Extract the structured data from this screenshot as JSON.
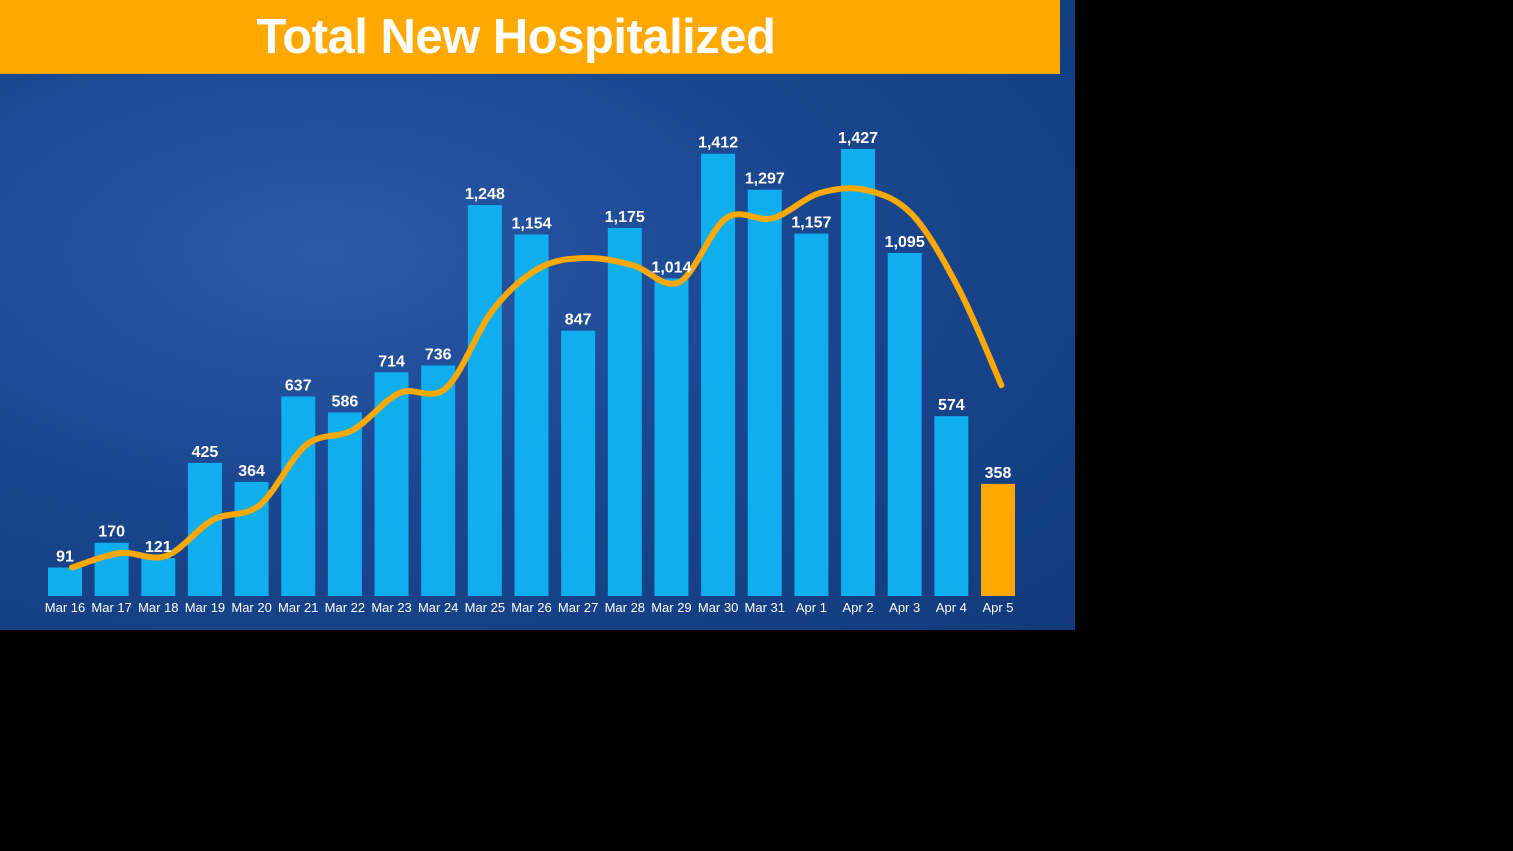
{
  "chart_data": {
    "type": "bar",
    "title": "Total New Hospitalized",
    "categories": [
      "Mar 16",
      "Mar 17",
      "Mar 18",
      "Mar 19",
      "Mar 20",
      "Mar 21",
      "Mar 22",
      "Mar 23",
      "Mar 24",
      "Mar 25",
      "Mar 26",
      "Mar 27",
      "Mar 28",
      "Mar 29",
      "Mar 30",
      "Mar 31",
      "Apr 1",
      "Apr 2",
      "Apr 3",
      "Apr 4",
      "Apr 5"
    ],
    "values": [
      91,
      170,
      121,
      425,
      364,
      637,
      586,
      714,
      736,
      1248,
      1154,
      847,
      1175,
      1014,
      1412,
      1297,
      1157,
      1427,
      1095,
      574,
      358
    ],
    "data_labels": [
      "91",
      "170",
      "121",
      "425",
      "364",
      "637",
      "586",
      "714",
      "736",
      "1,248",
      "1,154",
      "847",
      "1,175",
      "1,014",
      "1,412",
      "1,297",
      "1,157",
      "1,427",
      "1,095",
      "574",
      "358"
    ],
    "trend_line": [
      91,
      137,
      128,
      243,
      290,
      482,
      530,
      648,
      664,
      913,
      1047,
      1079,
      1056,
      1002,
      1206,
      1206,
      1286,
      1296,
      1216,
      977,
      673
    ],
    "ylim": [
      0,
      1500
    ],
    "grid": false,
    "legend": "none",
    "colors": {
      "bar": "#0FAEEF",
      "highlight_bar": "#FFA800",
      "trend": "#FFA800",
      "banner": "#FFA800",
      "background": "#1A4790"
    }
  }
}
